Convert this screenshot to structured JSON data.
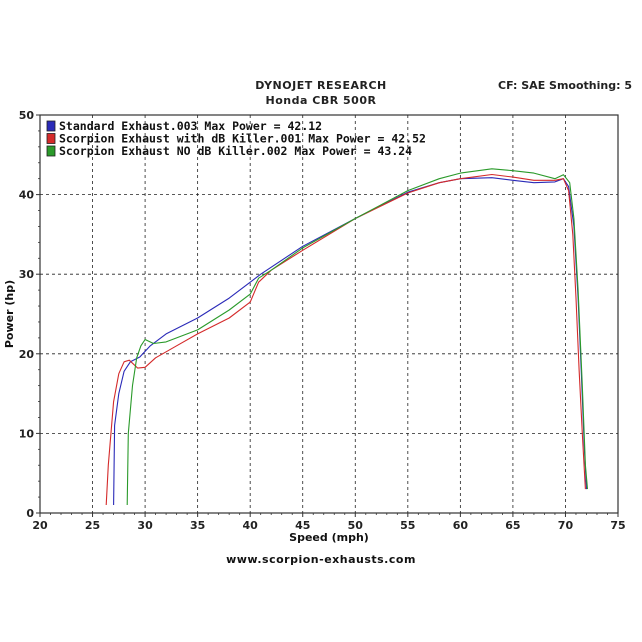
{
  "header": {
    "title": "DYNOJET RESEARCH",
    "subtitle": "Honda CBR 500R",
    "settings": "CF: SAE  Smoothing: 5"
  },
  "footer": {
    "website": "www.scorpion-exhausts.com"
  },
  "chart_data": {
    "type": "line",
    "xlabel": "Speed (mph)",
    "ylabel": "Power (hp)",
    "xlim": [
      20,
      75
    ],
    "ylim": [
      0,
      50
    ],
    "xticks": [
      20,
      25,
      30,
      35,
      40,
      45,
      50,
      55,
      60,
      65,
      70,
      75
    ],
    "yticks": [
      0,
      10,
      20,
      30,
      40,
      50
    ],
    "grid": true,
    "legend_position": "top-left",
    "series": [
      {
        "name": "Standard Exhaust.003 Max Power = 42.12",
        "color": "#2a2ab8",
        "points": [
          [
            27.0,
            1
          ],
          [
            27.1,
            11
          ],
          [
            27.5,
            15
          ],
          [
            28.0,
            17.8
          ],
          [
            28.6,
            19.0
          ],
          [
            29.5,
            19.6
          ],
          [
            30.5,
            21.0
          ],
          [
            32.0,
            22.5
          ],
          [
            35.0,
            24.5
          ],
          [
            38.0,
            27.0
          ],
          [
            40.0,
            29.0
          ],
          [
            41.0,
            30.0
          ],
          [
            45.0,
            33.5
          ],
          [
            50.0,
            37.0
          ],
          [
            55.0,
            40.3
          ],
          [
            58.0,
            41.5
          ],
          [
            60.0,
            42.0
          ],
          [
            63.0,
            42.12
          ],
          [
            65.0,
            41.8
          ],
          [
            67.0,
            41.5
          ],
          [
            69.0,
            41.6
          ],
          [
            69.8,
            42.0
          ],
          [
            70.3,
            41.0
          ],
          [
            70.8,
            36.0
          ],
          [
            71.2,
            27.0
          ],
          [
            71.5,
            18.0
          ],
          [
            71.8,
            8.0
          ],
          [
            72.0,
            3.0
          ]
        ]
      },
      {
        "name": "Scorpion Exhaust with dB Killer.001 Max Power = 42.52",
        "color": "#d42a2a",
        "points": [
          [
            26.3,
            1
          ],
          [
            26.5,
            6
          ],
          [
            27.0,
            14
          ],
          [
            27.5,
            17.5
          ],
          [
            28.0,
            19.0
          ],
          [
            28.5,
            19.2
          ],
          [
            29.3,
            18.2
          ],
          [
            30.0,
            18.3
          ],
          [
            31.0,
            19.5
          ],
          [
            33.0,
            21.0
          ],
          [
            35.0,
            22.5
          ],
          [
            38.0,
            24.5
          ],
          [
            40.0,
            26.5
          ],
          [
            40.8,
            29.0
          ],
          [
            42.0,
            30.5
          ],
          [
            45.0,
            33.0
          ],
          [
            50.0,
            37.0
          ],
          [
            55.0,
            40.2
          ],
          [
            58.0,
            41.5
          ],
          [
            60.0,
            42.0
          ],
          [
            63.0,
            42.52
          ],
          [
            65.0,
            42.2
          ],
          [
            67.0,
            41.8
          ],
          [
            69.0,
            41.8
          ],
          [
            69.8,
            42.0
          ],
          [
            70.3,
            40.5
          ],
          [
            70.7,
            35.0
          ],
          [
            71.0,
            27.0
          ],
          [
            71.3,
            18.0
          ],
          [
            71.6,
            10.0
          ],
          [
            71.9,
            3.0
          ]
        ]
      },
      {
        "name": "Scorpion Exhaust NO dB Killer.002 Max Power = 43.24",
        "color": "#2a9a2a",
        "points": [
          [
            28.3,
            1
          ],
          [
            28.4,
            10
          ],
          [
            28.8,
            16
          ],
          [
            29.2,
            19.5
          ],
          [
            29.6,
            21.0
          ],
          [
            30.0,
            21.8
          ],
          [
            30.8,
            21.3
          ],
          [
            32.0,
            21.5
          ],
          [
            35.0,
            23.0
          ],
          [
            38.0,
            25.5
          ],
          [
            40.0,
            27.5
          ],
          [
            40.8,
            29.5
          ],
          [
            42.0,
            30.5
          ],
          [
            45.0,
            33.3
          ],
          [
            50.0,
            37.0
          ],
          [
            55.0,
            40.5
          ],
          [
            58.0,
            42.0
          ],
          [
            60.0,
            42.7
          ],
          [
            63.0,
            43.24
          ],
          [
            65.0,
            43.0
          ],
          [
            67.0,
            42.7
          ],
          [
            69.0,
            42.0
          ],
          [
            69.8,
            42.5
          ],
          [
            70.4,
            41.5
          ],
          [
            70.8,
            37.0
          ],
          [
            71.2,
            28.0
          ],
          [
            71.6,
            16.0
          ],
          [
            71.9,
            6.0
          ],
          [
            72.1,
            3.0
          ]
        ]
      }
    ]
  }
}
